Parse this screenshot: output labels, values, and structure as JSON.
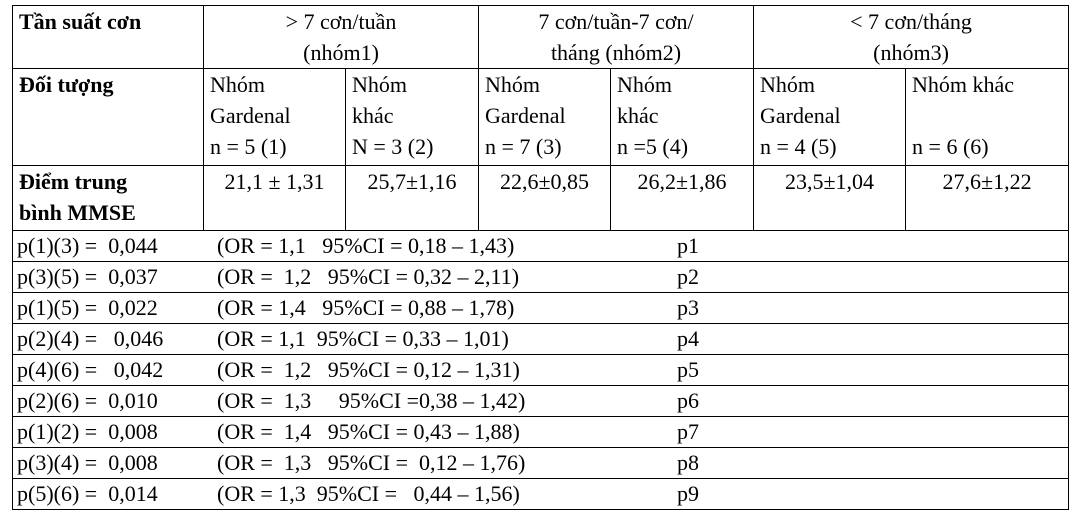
{
  "frequency": {
    "label": "Tần suất cơn",
    "groups": [
      [
        "> 7 cơn/tuần",
        "(nhóm1)"
      ],
      [
        "7 cơn/tuần-7 cơn/",
        "tháng (nhóm2)"
      ],
      [
        "< 7 cơn/tháng",
        "(nhóm3)"
      ]
    ]
  },
  "subjects": {
    "label": "Đối tượng",
    "groups": [
      [
        "Nhóm",
        "Gardenal",
        "n = 5 (1)"
      ],
      [
        "Nhóm",
        "khác",
        "N = 3 (2)"
      ],
      [
        "Nhóm",
        "Gardenal",
        "n = 7 (3)"
      ],
      [
        "Nhóm",
        "khác",
        "n =5 (4)"
      ],
      [
        "Nhóm",
        "Gardenal",
        "n = 4 (5)"
      ],
      [
        "Nhóm khác",
        "n = 6 (6)"
      ]
    ]
  },
  "mmse": {
    "label": [
      "Điểm trung",
      "bình MMSE"
    ],
    "values": [
      "21,1 ± 1,31",
      "25,7±1,16",
      "22,6±0,85",
      "26,2±1,86",
      "23,5±1,04",
      "27,6±1,22"
    ]
  },
  "p_values": [
    [
      "p(1)(3) =  0,044",
      "(OR = 1,1   95%CI = 0,18 – 1,43)",
      "p1"
    ],
    [
      "p(3)(5) =  0,037",
      "(OR =  1,2   95%CI = 0,32 – 2,11)",
      "p2"
    ],
    [
      "p(1)(5) =  0,022",
      "(OR = 1,4   95%CI = 0,88 – 1,78)",
      "p3"
    ],
    [
      "p(2)(4) =   0,046",
      "(OR = 1,1  95%CI = 0,33 – 1,01)",
      "p4"
    ],
    [
      "p(4)(6) =   0,042",
      "(OR =  1,2   95%CI = 0,12 – 1,31)",
      "p5"
    ],
    [
      "p(2)(6) =  0,010",
      "(OR =  1,3     95%CI =0,38 – 1,42)",
      "p6"
    ],
    [
      "p(1)(2) =  0,008",
      "(OR =  1,4   95%CI = 0,43 – 1,88)",
      "p7"
    ],
    [
      "p(3)(4) =  0,008",
      "(OR =  1,3   95%CI =  0,12 – 1,76)",
      "p8"
    ],
    [
      "p(5)(6) =  0,014",
      "(OR = 1,3  95%CI =   0,44 – 1,56)",
      "p9"
    ]
  ]
}
